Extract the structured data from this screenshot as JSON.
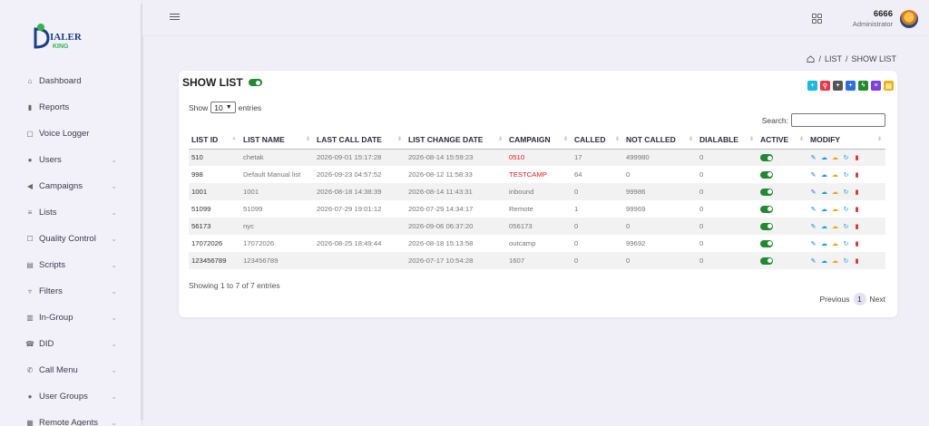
{
  "topbar": {
    "user_name": "6666",
    "user_role": "Administrator"
  },
  "sidebar": {
    "logo_text": "DIALER KING",
    "items": [
      {
        "label": "Dashboard",
        "icon": "home-icon",
        "has_chevron": false
      },
      {
        "label": "Reports",
        "icon": "bar-chart-icon",
        "has_chevron": false
      },
      {
        "label": "Voice Logger",
        "icon": "document-icon",
        "has_chevron": false
      },
      {
        "label": "Users",
        "icon": "user-icon",
        "has_chevron": true
      },
      {
        "label": "Campaigns",
        "icon": "megaphone-icon",
        "has_chevron": true
      },
      {
        "label": "Lists",
        "icon": "list-icon",
        "has_chevron": true
      },
      {
        "label": "Quality Control",
        "icon": "checkbox-icon",
        "has_chevron": true
      },
      {
        "label": "Scripts",
        "icon": "script-icon",
        "has_chevron": true
      },
      {
        "label": "Filters",
        "icon": "filter-icon",
        "has_chevron": true
      },
      {
        "label": "In-Group",
        "icon": "columns-icon",
        "has_chevron": true
      },
      {
        "label": "DID",
        "icon": "phone-icon",
        "has_chevron": true
      },
      {
        "label": "Call Menu",
        "icon": "phone-menu-icon",
        "has_chevron": true
      },
      {
        "label": "User Groups",
        "icon": "users-icon",
        "has_chevron": true
      },
      {
        "label": "Remote Agents",
        "icon": "remote-agents-icon",
        "has_chevron": true
      }
    ]
  },
  "breadcrumb": {
    "sep": "/",
    "list": "LIST",
    "current": "SHOW LIST"
  },
  "card": {
    "title": "SHOW LIST",
    "action_buttons": [
      {
        "icon": "plus-icon",
        "color": "#17b7e6",
        "glyph": "+"
      },
      {
        "icon": "search-icon",
        "color": "#e8364a",
        "glyph": "⚲"
      },
      {
        "icon": "plus-dark-icon",
        "color": "#555555",
        "glyph": "+"
      },
      {
        "icon": "plus-blue-icon",
        "color": "#2a6fe0",
        "glyph": "+"
      },
      {
        "icon": "bolt-icon",
        "color": "#1f8a2f",
        "glyph": "ϟ"
      },
      {
        "icon": "list-check-icon",
        "color": "#7b3fe4",
        "glyph": "≡"
      },
      {
        "icon": "note-icon",
        "color": "#f0b400",
        "glyph": "▤"
      }
    ],
    "show_label": "Show",
    "entries_value": "10",
    "entries_label": "entries",
    "search_label": "Search:",
    "search_placeholder": "",
    "columns": [
      "LIST ID",
      "LIST NAME",
      "LAST CALL DATE",
      "LIST CHANGE DATE",
      "CAMPAIGN",
      "CALLED",
      "NOT CALLED",
      "DIALABLE",
      "ACTIVE",
      "MODIFY"
    ],
    "rows": [
      {
        "id": "510",
        "name": "chetak",
        "last_call": "2026-09-01 15:17:28",
        "change": "2026-08-14 15:59:23",
        "campaign": "0510",
        "campaign_red": true,
        "called": "17",
        "not_called": "499980",
        "dialable": "0"
      },
      {
        "id": "998",
        "name": "Default Manual list",
        "last_call": "2026-09-23 04:57:52",
        "change": "2026-08-12 11:58:33",
        "campaign": "TESTCAMP",
        "campaign_red": true,
        "called": "64",
        "not_called": "0",
        "dialable": "0"
      },
      {
        "id": "1001",
        "name": "1001",
        "last_call": "2026-08-18 14:38:39",
        "change": "2026-08-14 11:43:31",
        "campaign": "inbound",
        "campaign_red": false,
        "called": "0",
        "not_called": "99986",
        "dialable": "0"
      },
      {
        "id": "51099",
        "name": "51099",
        "last_call": "2026-07-29 19:01:12",
        "change": "2026-07-29 14:34:17",
        "campaign": "Remote",
        "campaign_red": false,
        "called": "1",
        "not_called": "99969",
        "dialable": "0"
      },
      {
        "id": "56173",
        "name": "nyc",
        "last_call": "",
        "change": "2026-09-06 06:37:20",
        "campaign": "056173",
        "campaign_red": false,
        "called": "0",
        "not_called": "0",
        "dialable": "0"
      },
      {
        "id": "17072026",
        "name": "17072026",
        "last_call": "2026-08-25 18:49:44",
        "change": "2026-08-18 15:13:58",
        "campaign": "outcamp",
        "campaign_red": false,
        "called": "0",
        "not_called": "99692",
        "dialable": "0"
      },
      {
        "id": "123456789",
        "name": "123456789",
        "last_call": "",
        "change": "2026-07-17 10:54:28",
        "campaign": "1607",
        "campaign_red": false,
        "called": "0",
        "not_called": "0",
        "dialable": "0"
      }
    ],
    "info": "Showing 1 to 7 of 7 entries",
    "prev_label": "Previous",
    "page": "1",
    "next_label": "Next"
  }
}
